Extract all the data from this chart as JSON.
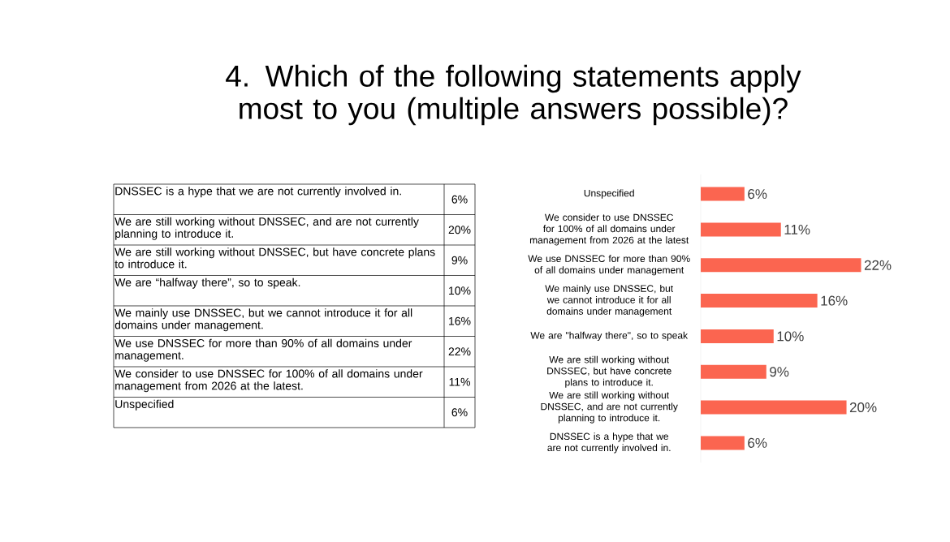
{
  "chart_data": [
    {
      "type": "other",
      "title": "4. Which of the following statements apply most to you (multiple answers possible)?",
      "categories": [
        "DNSSEC is a hype that we are not currently involved in.",
        "We are still working without DNSSEC, and are not currently planning to introduce it.",
        "We are still working without DNSSEC, but have concrete plans to introduce it.",
        "We are “halfway there”, so to speak.",
        "We mainly use DNSSEC, but we cannot introduce it for all domains under management.",
        "We use DNSSEC for more than 90% of all domains under management.",
        "We consider to use DNSSEC for 100% of all domains under management from 2026 at the latest.",
        "Unspecified"
      ],
      "values": [
        6,
        20,
        9,
        10,
        16,
        22,
        11,
        6
      ],
      "value_labels": [
        "6%",
        "20%",
        "9%",
        "10%",
        "16%",
        "22%",
        "11%",
        "6%"
      ]
    },
    {
      "type": "bar",
      "orientation": "horizontal",
      "color": "#fb6550",
      "categories": [
        "Unspecified",
        "We consider to use DNSSEC for 100% of all domains under management from 2026 at the latest",
        "We use DNSSEC for more than 90% of all domains under management",
        "We mainly use DNSSEC, but we cannot introduce it for all domains under management",
        "We are \"halfway there\", so to speak",
        "We are still working without DNSSEC, but have concrete plans to introduce it.",
        "We are still working without DNSSEC, and are not currently planning to introduce it.",
        "DNSSEC is a hype that we are not currently involved in."
      ],
      "values": [
        6,
        11,
        22,
        16,
        10,
        9,
        20,
        6
      ],
      "value_labels": [
        "6%",
        "11%",
        "22%",
        "16%",
        "10%",
        "9%",
        "20%",
        "6%"
      ]
    }
  ]
}
